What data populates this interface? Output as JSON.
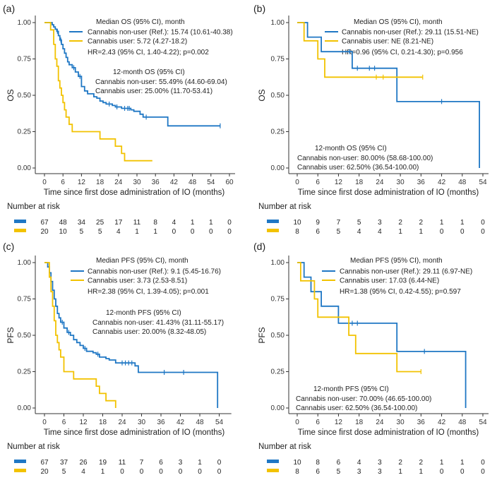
{
  "colors": {
    "non_user": "#1f77c4",
    "user": "#f2c200",
    "axis": "#333333",
    "text": "#222222"
  },
  "chart_data": [
    {
      "type": "line",
      "panel_label": "(a)",
      "ylabel": "OS",
      "xlabel": "Time since first dose administration of IO (months)",
      "xlim": [
        0,
        60
      ],
      "xticks": [
        0,
        6,
        12,
        18,
        24,
        30,
        36,
        42,
        48,
        54,
        60
      ],
      "ylim": [
        0,
        1
      ],
      "yticks": [
        "0.00",
        "0.25",
        "0.50",
        "0.75",
        "1.00"
      ],
      "annotations": [
        {
          "text": "Median OS (95% CI), month"
        },
        {
          "text": "Cannabis non-user (Ref.): 15.74 (10.61-40.38)"
        },
        {
          "text": "Cannabis user: 5.72 (4.27-18.2)"
        },
        {
          "text": "HR=2.43 (95% CI, 1.40-4.22); p=0.002"
        },
        {
          "text": "12-month OS (95% CI)"
        },
        {
          "text": "Cannabis non-user: 55.49% (44.60-69.04)"
        },
        {
          "text": "Cannabis user: 25.00% (11.70-53.41)"
        }
      ],
      "series": [
        {
          "name": "Cannabis non-user",
          "color_key": "non_user",
          "steps": [
            [
              0,
              1
            ],
            [
              2.5,
              0.985
            ],
            [
              3,
              0.97
            ],
            [
              3.5,
              0.955
            ],
            [
              4,
              0.94
            ],
            [
              4.5,
              0.91
            ],
            [
              5,
              0.88
            ],
            [
              5.5,
              0.85
            ],
            [
              6,
              0.82
            ],
            [
              6.5,
              0.79
            ],
            [
              7,
              0.76
            ],
            [
              7.5,
              0.73
            ],
            [
              8,
              0.71
            ],
            [
              9,
              0.69
            ],
            [
              10,
              0.66
            ],
            [
              11,
              0.63
            ],
            [
              12,
              0.56
            ],
            [
              13,
              0.53
            ],
            [
              14,
              0.51
            ],
            [
              16,
              0.49
            ],
            [
              17,
              0.48
            ],
            [
              18,
              0.46
            ],
            [
              19,
              0.45
            ],
            [
              20,
              0.44
            ],
            [
              22,
              0.43
            ],
            [
              23,
              0.42
            ],
            [
              25,
              0.41
            ],
            [
              28,
              0.4
            ],
            [
              29,
              0.39
            ],
            [
              31,
              0.37
            ],
            [
              32,
              0.35
            ],
            [
              40,
              0.29
            ],
            [
              57,
              0.29
            ]
          ],
          "censors": [
            [
              4.2,
              0.94
            ],
            [
              5.3,
              0.88
            ],
            [
              9.5,
              0.69
            ],
            [
              11.5,
              0.63
            ],
            [
              21,
              0.44
            ],
            [
              23.5,
              0.42
            ],
            [
              26,
              0.41
            ],
            [
              27,
              0.41
            ],
            [
              27.5,
              0.41
            ],
            [
              33,
              0.35
            ],
            [
              57,
              0.29
            ]
          ]
        },
        {
          "name": "Cannabis user",
          "color_key": "user",
          "steps": [
            [
              0,
              1
            ],
            [
              2,
              0.95
            ],
            [
              3,
              0.85
            ],
            [
              3.5,
              0.75
            ],
            [
              4,
              0.7
            ],
            [
              4.5,
              0.6
            ],
            [
              5,
              0.55
            ],
            [
              5.5,
              0.5
            ],
            [
              6,
              0.45
            ],
            [
              6.5,
              0.4
            ],
            [
              7,
              0.35
            ],
            [
              8,
              0.3
            ],
            [
              9,
              0.25
            ],
            [
              18,
              0.2
            ],
            [
              23,
              0.15
            ],
            [
              25,
              0.1
            ],
            [
              26,
              0.05
            ],
            [
              35,
              0.05
            ]
          ],
          "censors": []
        }
      ],
      "risk_table": {
        "title": "Number at risk",
        "rows": [
          {
            "name": "Cannabis non-user",
            "color_key": "non_user",
            "values": [
              "67",
              "48",
              "34",
              "25",
              "17",
              "11",
              "8",
              "4",
              "1",
              "1",
              "0"
            ]
          },
          {
            "name": "Cannabis user",
            "color_key": "user",
            "values": [
              "20",
              "10",
              "5",
              "5",
              "4",
              "1",
              "1",
              "0",
              "0",
              "0",
              "0"
            ]
          }
        ]
      }
    },
    {
      "type": "line",
      "panel_label": "(b)",
      "ylabel": "OS",
      "xlabel": "Time since first dose administration of IO (months)",
      "xlim": [
        0,
        54
      ],
      "xticks": [
        0,
        6,
        12,
        18,
        24,
        30,
        36,
        42,
        48,
        54
      ],
      "ylim": [
        0,
        1
      ],
      "yticks": [
        "0.00",
        "0.25",
        "0.50",
        "0.75",
        "1.00"
      ],
      "annotations": [
        {
          "text": "Median OS (95% CI), month"
        },
        {
          "text": "Cannabis non-user (Ref.): 29.11 (15.51-NE)"
        },
        {
          "text": "Cannabis user: NE (8.21-NE)"
        },
        {
          "text": "HR=0.96 (95% CI, 0.21-4.30); p=0.956"
        },
        {
          "text": "12-month OS (95% CI)"
        },
        {
          "text": "Cannabis non-user: 80.00% (58.68-100.00)"
        },
        {
          "text": "Cannabis user: 62.50% (36.54-100.00)"
        }
      ],
      "series": [
        {
          "name": "Cannabis non-user",
          "color_key": "non_user",
          "steps": [
            [
              0,
              1
            ],
            [
              3,
              0.9
            ],
            [
              7,
              0.8
            ],
            [
              16,
              0.686
            ],
            [
              29,
              0.457
            ],
            [
              53,
              0.0
            ]
          ],
          "censors": [
            [
              15.2,
              0.8
            ],
            [
              17.5,
              0.686
            ],
            [
              21,
              0.686
            ],
            [
              22.5,
              0.686
            ],
            [
              42,
              0.457
            ]
          ]
        },
        {
          "name": "Cannabis user",
          "color_key": "user",
          "steps": [
            [
              0,
              1
            ],
            [
              2,
              0.875
            ],
            [
              6,
              0.75
            ],
            [
              8,
              0.625
            ],
            [
              36.5,
              0.625
            ]
          ],
          "censors": [
            [
              23,
              0.625
            ],
            [
              25,
              0.625
            ],
            [
              36.5,
              0.625
            ]
          ]
        }
      ],
      "risk_table": {
        "title": "Number at risk",
        "rows": [
          {
            "name": "Cannabis non-user",
            "color_key": "non_user",
            "values": [
              "10",
              "9",
              "7",
              "5",
              "3",
              "2",
              "2",
              "1",
              "1",
              "0"
            ]
          },
          {
            "name": "Cannabis user",
            "color_key": "user",
            "values": [
              "8",
              "6",
              "5",
              "4",
              "4",
              "1",
              "1",
              "0",
              "0",
              "0"
            ]
          }
        ]
      }
    },
    {
      "type": "line",
      "panel_label": "(c)",
      "ylabel": "PFS",
      "xlabel": "Time since first dose administration of IO (months)",
      "xlim": [
        0,
        56
      ],
      "xticks": [
        0,
        6,
        12,
        18,
        24,
        30,
        36,
        42,
        48,
        54
      ],
      "ylim": [
        0,
        1
      ],
      "yticks": [
        "0.00",
        "0.25",
        "0.50",
        "0.75",
        "1.00"
      ],
      "annotations": [
        {
          "text": "Median PFS (95% CI), month"
        },
        {
          "text": "Cannabis non-user (Ref.): 9.1 (5.45-16.76)"
        },
        {
          "text": "Cannabis user: 3.73 (2.53-8.51)"
        },
        {
          "text": "HR=2.38 (95% CI, 1.39-4.05); p=0.001"
        },
        {
          "text": "12-month PFS (95% CI)"
        },
        {
          "text": "Cannabis non-user: 41.43% (31.11-55.17)"
        },
        {
          "text": "Cannabis user: 20.00% (8.32-48.05)"
        }
      ],
      "series": [
        {
          "name": "Cannabis non-user",
          "color_key": "non_user",
          "steps": [
            [
              0,
              1
            ],
            [
              1,
              0.97
            ],
            [
              1.5,
              0.93
            ],
            [
              2,
              0.87
            ],
            [
              2.5,
              0.81
            ],
            [
              3,
              0.75
            ],
            [
              3.5,
              0.7
            ],
            [
              4,
              0.65
            ],
            [
              4.5,
              0.62
            ],
            [
              5,
              0.59
            ],
            [
              6,
              0.55
            ],
            [
              7,
              0.52
            ],
            [
              8,
              0.5
            ],
            [
              9,
              0.47
            ],
            [
              10,
              0.45
            ],
            [
              11,
              0.43
            ],
            [
              12,
              0.41
            ],
            [
              13,
              0.39
            ],
            [
              15,
              0.38
            ],
            [
              16,
              0.37
            ],
            [
              17,
              0.35
            ],
            [
              19,
              0.34
            ],
            [
              20,
              0.33
            ],
            [
              22,
              0.31
            ],
            [
              28,
              0.29
            ],
            [
              29,
              0.245
            ],
            [
              53,
              0.245
            ],
            [
              53.5,
              0.0
            ]
          ],
          "censors": [
            [
              5.5,
              0.59
            ],
            [
              7.5,
              0.52
            ],
            [
              12.5,
              0.41
            ],
            [
              16.5,
              0.37
            ],
            [
              24,
              0.31
            ],
            [
              25,
              0.31
            ],
            [
              26,
              0.31
            ],
            [
              27,
              0.31
            ],
            [
              37,
              0.245
            ],
            [
              43,
              0.245
            ]
          ]
        },
        {
          "name": "Cannabis user",
          "color_key": "user",
          "steps": [
            [
              0,
              1
            ],
            [
              1.5,
              0.9
            ],
            [
              2,
              0.8
            ],
            [
              2.5,
              0.7
            ],
            [
              3,
              0.6
            ],
            [
              3.5,
              0.5
            ],
            [
              4,
              0.45
            ],
            [
              4.5,
              0.4
            ],
            [
              5,
              0.35
            ],
            [
              6,
              0.25
            ],
            [
              9,
              0.2
            ],
            [
              16,
              0.15
            ],
            [
              17,
              0.1
            ],
            [
              19,
              0.05
            ],
            [
              22,
              0.0
            ]
          ],
          "censors": []
        }
      ],
      "risk_table": {
        "title": "Number at risk",
        "rows": [
          {
            "name": "Cannabis non-user",
            "color_key": "non_user",
            "values": [
              "67",
              "37",
              "26",
              "19",
              "11",
              "7",
              "6",
              "3",
              "1",
              "0"
            ]
          },
          {
            "name": "Cannabis user",
            "color_key": "user",
            "values": [
              "20",
              "5",
              "4",
              "1",
              "0",
              "0",
              "0",
              "0",
              "0",
              "0"
            ]
          }
        ]
      }
    },
    {
      "type": "line",
      "panel_label": "(d)",
      "ylabel": "PFS",
      "xlabel": "Time since first dose administration of IO (months)",
      "xlim": [
        0,
        54
      ],
      "xticks": [
        0,
        6,
        12,
        18,
        24,
        30,
        36,
        42,
        48,
        54
      ],
      "ylim": [
        0,
        1
      ],
      "yticks": [
        "0.00",
        "0.25",
        "0.50",
        "0.75",
        "1.00"
      ],
      "annotations": [
        {
          "text": "Median PFS (95% CI), month"
        },
        {
          "text": "Cannabis non-user (Ref.): 29.11 (6.97-NE)"
        },
        {
          "text": "Cannabis user: 17.03 (6.44-NE)"
        },
        {
          "text": "HR=1.38 (95% CI, 0.42-4.55); p=0.597"
        },
        {
          "text": "12-month PFS (95% CI)"
        },
        {
          "text": "Cannabis non-user: 70.00% (46.65-100.00)"
        },
        {
          "text": "Cannabis user: 62.50% (36.54-100.00)"
        }
      ],
      "series": [
        {
          "name": "Cannabis non-user",
          "color_key": "non_user",
          "steps": [
            [
              0,
              1
            ],
            [
              2,
              0.9
            ],
            [
              4,
              0.8
            ],
            [
              7,
              0.7
            ],
            [
              12,
              0.583
            ],
            [
              29,
              0.389
            ],
            [
              49,
              0.0
            ]
          ],
          "censors": [
            [
              16,
              0.583
            ],
            [
              17.5,
              0.583
            ],
            [
              37,
              0.389
            ]
          ]
        },
        {
          "name": "Cannabis user",
          "color_key": "user",
          "steps": [
            [
              0,
              1
            ],
            [
              1,
              0.875
            ],
            [
              5,
              0.75
            ],
            [
              6,
              0.625
            ],
            [
              15,
              0.5
            ],
            [
              17,
              0.375
            ],
            [
              29,
              0.25
            ],
            [
              36,
              0.25
            ]
          ],
          "censors": [
            [
              36,
              0.25
            ]
          ]
        }
      ],
      "risk_table": {
        "title": "Number at risk",
        "rows": [
          {
            "name": "Cannabis non-user",
            "color_key": "non_user",
            "values": [
              "10",
              "8",
              "6",
              "4",
              "3",
              "2",
              "2",
              "1",
              "1",
              "0"
            ]
          },
          {
            "name": "Cannabis user",
            "color_key": "user",
            "values": [
              "8",
              "6",
              "5",
              "3",
              "3",
              "1",
              "1",
              "0",
              "0",
              "0"
            ]
          }
        ]
      }
    }
  ]
}
